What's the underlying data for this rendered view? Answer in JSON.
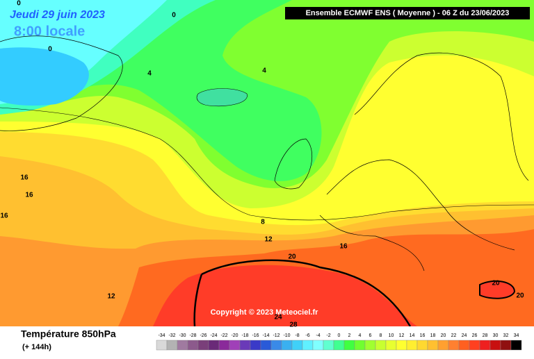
{
  "header": {
    "date": "Jeudi 29 juin 2023",
    "time": "8:00 locale",
    "model": "Ensemble ECMWF ENS  ( Moyenne )  -  06 Z du 23/06/2023"
  },
  "contour_labels": [
    0,
    0,
    0,
    4,
    4,
    8,
    12,
    12,
    16,
    16,
    16,
    16,
    20,
    20,
    20,
    24,
    28
  ],
  "copyright": "Copyright © 2023 Meteociel.fr",
  "footer": {
    "title": "Température 850hPa",
    "subtitle": "(+ 144h)"
  },
  "scale": {
    "values": [
      -34,
      -32,
      -30,
      -28,
      -26,
      -24,
      -22,
      -20,
      -18,
      -16,
      -14,
      -12,
      -10,
      -8,
      -6,
      -4,
      -2,
      0,
      2,
      4,
      6,
      8,
      10,
      12,
      14,
      16,
      18,
      20,
      22,
      24,
      26,
      28,
      30,
      32,
      34
    ],
    "colors": [
      "#d9d9d9",
      "#b3b3b3",
      "#a07aa0",
      "#8c5a8c",
      "#7a3f7a",
      "#6a2a78",
      "#8a2a9a",
      "#a040b8",
      "#6a3ab8",
      "#3a3ac8",
      "#2a5ad8",
      "#3a8ae8",
      "#3ab0f0",
      "#40d0f8",
      "#60f0ff",
      "#80ffff",
      "#60ffd0",
      "#40ff90",
      "#40ff40",
      "#70ff30",
      "#a0ff30",
      "#c8ff30",
      "#e8ff30",
      "#ffff30",
      "#ffee30",
      "#ffd830",
      "#ffc030",
      "#ffa030",
      "#ff8030",
      "#ff6020",
      "#ff4020",
      "#ee2020",
      "#c81010",
      "#901010",
      "#000000"
    ]
  }
}
